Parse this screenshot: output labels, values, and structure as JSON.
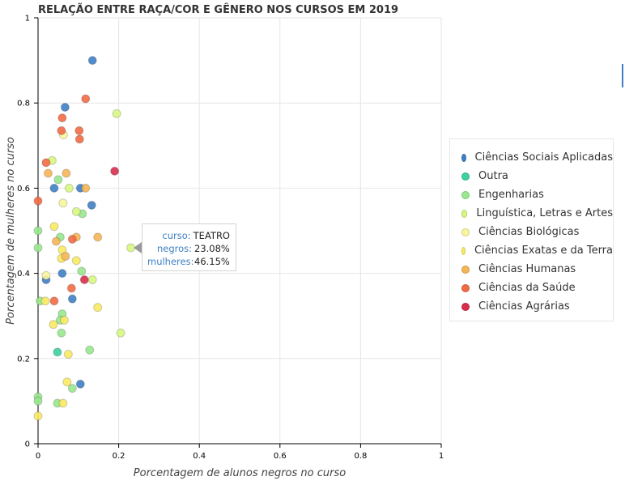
{
  "chart_data": {
    "type": "scatter",
    "title": "RELAÇÃO ENTRE RAÇA/COR E GÊNERO NOS CURSOS EM 2019",
    "xlabel": "Porcentagem de alunos negros no curso",
    "ylabel": "Porcentagem de mulheres no curso",
    "xlim": [
      0,
      1
    ],
    "ylim": [
      0,
      1
    ],
    "xticks": [
      0,
      0.2,
      0.4,
      0.6,
      0.8,
      1
    ],
    "xtick_labels": [
      "0",
      "0.2",
      "0.4",
      "0.6",
      "0.8",
      "1"
    ],
    "yticks": [
      0,
      0.2,
      0.4,
      0.6,
      0.8,
      1
    ],
    "ytick_labels": [
      "0",
      "0.2",
      "0.4",
      "0.6",
      "0.8",
      "1"
    ],
    "grid": true,
    "legend_position": "right",
    "series": [
      {
        "name": "Ciências Sociais Aplicadas",
        "color": "#3f7fc4",
        "points": [
          [
            0.135,
            0.9
          ],
          [
            0.067,
            0.79
          ],
          [
            0.105,
            0.6
          ],
          [
            0.04,
            0.6
          ],
          [
            0.133,
            0.56
          ],
          [
            0.06,
            0.4
          ],
          [
            0.02,
            0.385
          ],
          [
            0.085,
            0.34
          ],
          [
            0.105,
            0.14
          ]
        ]
      },
      {
        "name": "Outra",
        "color": "#3dd19c",
        "points": [
          [
            0.048,
            0.215
          ]
        ]
      },
      {
        "name": "Engenharias",
        "color": "#98e88e",
        "points": [
          [
            0.05,
            0.62
          ],
          [
            0.11,
            0.54
          ],
          [
            0.055,
            0.485
          ],
          [
            0.108,
            0.405
          ],
          [
            0.06,
            0.305
          ],
          [
            0.055,
            0.29
          ],
          [
            0.058,
            0.26
          ],
          [
            0.128,
            0.22
          ],
          [
            0.085,
            0.13
          ],
          [
            0.048,
            0.095
          ],
          [
            0.0,
            0.11
          ],
          [
            0.0,
            0.1
          ],
          [
            0.0,
            0.5
          ],
          [
            0.0,
            0.46
          ],
          [
            0.005,
            0.335
          ]
        ]
      },
      {
        "name": "Linguística, Letras e Artes",
        "color": "#d6f77f",
        "points": [
          [
            0.195,
            0.775
          ],
          [
            0.035,
            0.665
          ],
          [
            0.077,
            0.6
          ],
          [
            0.095,
            0.545
          ],
          [
            0.23,
            0.46
          ],
          [
            0.135,
            0.385
          ],
          [
            0.205,
            0.26
          ]
        ]
      },
      {
        "name": "Ciências Biológicas",
        "color": "#f8f59c",
        "points": [
          [
            0.063,
            0.725
          ],
          [
            0.062,
            0.565
          ],
          [
            0.02,
            0.395
          ]
        ]
      },
      {
        "name": "Ciências Exatas e da Terra",
        "color": "#f8ea62",
        "points": [
          [
            0.04,
            0.51
          ],
          [
            0.06,
            0.455
          ],
          [
            0.058,
            0.435
          ],
          [
            0.095,
            0.43
          ],
          [
            0.148,
            0.32
          ],
          [
            0.038,
            0.28
          ],
          [
            0.065,
            0.29
          ],
          [
            0.075,
            0.21
          ],
          [
            0.072,
            0.145
          ],
          [
            0.062,
            0.095
          ],
          [
            0.0,
            0.065
          ],
          [
            0.018,
            0.335
          ]
        ]
      },
      {
        "name": "Ciências Humanas",
        "color": "#f5b655",
        "points": [
          [
            0.025,
            0.635
          ],
          [
            0.07,
            0.635
          ],
          [
            0.118,
            0.6
          ],
          [
            0.095,
            0.485
          ],
          [
            0.148,
            0.485
          ],
          [
            0.045,
            0.475
          ],
          [
            0.068,
            0.44
          ]
        ]
      },
      {
        "name": "Ciências da Saúde",
        "color": "#f26a45",
        "points": [
          [
            0.118,
            0.81
          ],
          [
            0.06,
            0.765
          ],
          [
            0.058,
            0.735
          ],
          [
            0.102,
            0.735
          ],
          [
            0.103,
            0.715
          ],
          [
            0.02,
            0.66
          ],
          [
            0.0,
            0.57
          ],
          [
            0.085,
            0.48
          ],
          [
            0.083,
            0.365
          ],
          [
            0.04,
            0.335
          ]
        ]
      },
      {
        "name": "Ciências Agrárias",
        "color": "#d92d4c",
        "points": [
          [
            0.19,
            0.64
          ],
          [
            0.115,
            0.385
          ]
        ]
      }
    ]
  },
  "tooltip": {
    "curso_key": "curso:",
    "curso_val": "TEATRO",
    "negros_key": "negros:",
    "negros_val": "23.08%",
    "mulheres_key": "mulheres:",
    "mulheres_val": "46.15%"
  }
}
